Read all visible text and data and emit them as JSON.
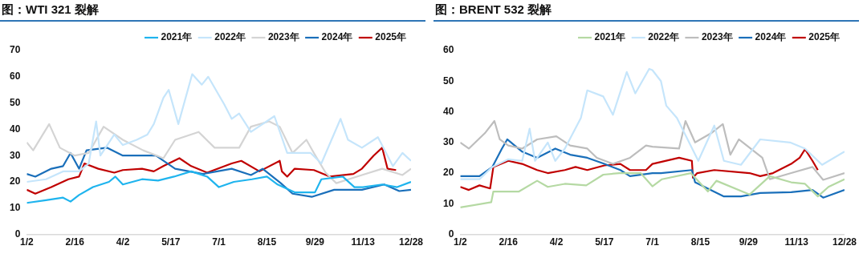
{
  "chart_data": [
    {
      "type": "line",
      "title": "图：WTI 321 裂解",
      "legend": "top right",
      "marker": "none",
      "line_style": "solid",
      "grid": false,
      "xlim": [
        "--01-02",
        "--12-28"
      ],
      "xticks": [
        {
          "value": "--01-02",
          "label": "1/2"
        },
        {
          "value": "--02-16",
          "label": "2/16"
        },
        {
          "value": "--04-02",
          "label": "4/2"
        },
        {
          "value": "--05-17",
          "label": "5/17"
        },
        {
          "value": "--07-01",
          "label": "7/1"
        },
        {
          "value": "--08-15",
          "label": "8/15"
        },
        {
          "value": "--09-29",
          "label": "9/29"
        },
        {
          "value": "--11-13",
          "label": "11/13"
        },
        {
          "value": "--12-28",
          "label": "12/28"
        }
      ],
      "ylim": [
        0,
        70
      ],
      "yticks": [
        0,
        10,
        20,
        30,
        40,
        50,
        60,
        70
      ],
      "series": [
        {
          "name": "2021年",
          "color": "#1fb4ee",
          "x": [
            "--01-02",
            "--01-20",
            "--02-05",
            "--02-12",
            "--02-20",
            "--03-05",
            "--03-20",
            "--03-26",
            "--04-02",
            "--04-20",
            "--05-05",
            "--05-20",
            "--06-05",
            "--06-20",
            "--07-01",
            "--07-15",
            "--08-01",
            "--08-15",
            "--08-25",
            "--09-10",
            "--09-29",
            "--10-05",
            "--10-25",
            "--11-05",
            "--11-13",
            "--12-01",
            "--12-15",
            "--12-28"
          ],
          "values": [
            12,
            13,
            14,
            12.5,
            15,
            18,
            20,
            22,
            19,
            21,
            20.5,
            22,
            24,
            22,
            18,
            20,
            21,
            22,
            19,
            16,
            16,
            21,
            22,
            18,
            18,
            19,
            18,
            20
          ]
        },
        {
          "name": "2022年",
          "color": "#c5e5fb",
          "x": [
            "--01-02",
            "--01-20",
            "--02-05",
            "--02-20",
            "--03-01",
            "--03-08",
            "--03-12",
            "--03-25",
            "--04-02",
            "--04-15",
            "--04-25",
            "--05-01",
            "--05-10",
            "--05-15",
            "--05-24",
            "--06-06",
            "--06-15",
            "--06-21",
            "--07-06",
            "--07-13",
            "--07-20",
            "--07-31",
            "--08-22",
            "--09-03",
            "--09-25",
            "--10-05",
            "--10-23",
            "--10-30",
            "--11-12",
            "--11-27",
            "--12-11",
            "--12-20",
            "--12-28"
          ],
          "values": [
            20,
            21,
            24,
            24,
            27,
            43,
            30,
            38,
            34,
            36,
            38,
            42,
            52,
            55,
            42,
            61,
            57,
            60,
            49.5,
            44,
            46,
            39,
            45,
            31,
            31,
            27,
            44,
            36,
            33,
            37,
            26,
            31,
            28
          ]
        },
        {
          "name": "2023年",
          "color": "#d4d4d4",
          "x": [
            "--01-02",
            "--01-08",
            "--01-23",
            "--02-02",
            "--02-16",
            "--03-01",
            "--03-15",
            "--04-02",
            "--04-21",
            "--05-10",
            "--05-21",
            "--06-12",
            "--06-27",
            "--07-20",
            "--07-31",
            "--08-17",
            "--08-27",
            "--09-08",
            "--09-21",
            "--09-28",
            "--10-09",
            "--10-19",
            "--11-12",
            "--12-01",
            "--12-20",
            "--12-28"
          ],
          "values": [
            35,
            32,
            42,
            33,
            30,
            31,
            41,
            36,
            32,
            29,
            36,
            39,
            33,
            33,
            41,
            43,
            41,
            31,
            36,
            31,
            23.5,
            19.5,
            22.6,
            25,
            22.6,
            25
          ]
        },
        {
          "name": "2024年",
          "color": "#1a6fba",
          "x": [
            "--01-02",
            "--01-10",
            "--01-25",
            "--02-05",
            "--02-12",
            "--02-20",
            "--02-27",
            "--03-18",
            "--04-02",
            "--04-20",
            "--05-03",
            "--05-21",
            "--06-16",
            "--07-13",
            "--07-31",
            "--08-11",
            "--08-28",
            "--09-08",
            "--09-26",
            "--10-17",
            "--11-12",
            "--12-03",
            "--12-17",
            "--12-28"
          ],
          "values": [
            23,
            22,
            25,
            26,
            31,
            25,
            32,
            33,
            30,
            30,
            30,
            25,
            23,
            25,
            22.6,
            25,
            19.5,
            15.5,
            14.3,
            17,
            17,
            19,
            16.5,
            17
          ]
        },
        {
          "name": "2025年",
          "color": "#c00000",
          "x": [
            "--01-02",
            "--01-10",
            "--01-25",
            "--02-10",
            "--02-20",
            "--02-25",
            "--03-10",
            "--03-25",
            "--04-02",
            "--04-20",
            "--05-01",
            "--05-10",
            "--05-25",
            "--06-05",
            "--06-20",
            "--07-13",
            "--07-22",
            "--08-08",
            "--08-27",
            "--08-29",
            "--09-03",
            "--09-10",
            "--09-28",
            "--10-13",
            "--11-04",
            "--11-12",
            "--11-23",
            "--12-01",
            "--12-06",
            "--12-14"
          ],
          "values": [
            17,
            15.5,
            18,
            21,
            22,
            27,
            25,
            23.5,
            24.5,
            25,
            24,
            26,
            29,
            26,
            23.5,
            27,
            28,
            24,
            28,
            24,
            22,
            25,
            24.5,
            22,
            23,
            25,
            30,
            33,
            25,
            24.5
          ]
        }
      ]
    },
    {
      "type": "line",
      "title": "图：BRENT 532 裂解",
      "legend": "top right",
      "marker": "none",
      "line_style": "solid",
      "grid": false,
      "xlim": [
        "--01-02",
        "--12-28"
      ],
      "xticks": [
        {
          "value": "--01-02",
          "label": "1/2"
        },
        {
          "value": "--02-16",
          "label": "2/16"
        },
        {
          "value": "--04-02",
          "label": "4/2"
        },
        {
          "value": "--05-17",
          "label": "5/17"
        },
        {
          "value": "--07-01",
          "label": "7/1"
        },
        {
          "value": "--08-15",
          "label": "8/15"
        },
        {
          "value": "--09-29",
          "label": "9/29"
        },
        {
          "value": "--11-13",
          "label": "11/13"
        },
        {
          "value": "--12-28",
          "label": "12/28"
        }
      ],
      "ylim": [
        0,
        60
      ],
      "yticks": [
        0,
        10,
        20,
        30,
        40,
        50,
        60
      ],
      "series": [
        {
          "name": "2021年",
          "color": "#b5d9a3",
          "x": [
            "--01-02",
            "--01-31",
            "--02-02",
            "--02-26",
            "--03-15",
            "--03-25",
            "--04-10",
            "--04-30",
            "--05-16",
            "--05-31",
            "--06-20",
            "--07-01",
            "--07-10",
            "--08-06",
            "--08-22",
            "--08-30",
            "--09-30",
            "--10-19",
            "--11-08",
            "--11-21",
            "--12-03",
            "--12-13",
            "--12-28"
          ],
          "values": [
            8.8,
            10.5,
            14,
            14,
            17.5,
            15.5,
            16.5,
            16,
            19.5,
            20,
            20,
            15.7,
            18,
            20,
            14,
            17.5,
            13,
            19,
            17,
            16.5,
            12.4,
            15.5,
            18
          ]
        },
        {
          "name": "2022年",
          "color": "#c5e5fb",
          "x": [
            "--01-02",
            "--01-20",
            "--02-01",
            "--02-16",
            "--03-01",
            "--03-08",
            "--03-13",
            "--03-25",
            "--04-01",
            "--04-10",
            "--04-25",
            "--05-01",
            "--05-16",
            "--05-25",
            "--06-07",
            "--06-15",
            "--06-28",
            "--07-01",
            "--07-09",
            "--07-14",
            "--07-24",
            "--08-13",
            "--08-28",
            "--09-06",
            "--09-22",
            "--10-10",
            "--11-07",
            "--11-21",
            "--12-07",
            "--12-28"
          ],
          "values": [
            18,
            18,
            22,
            24.5,
            24,
            34.5,
            24,
            30,
            24,
            28,
            38,
            47,
            45,
            39,
            53,
            46,
            54,
            53.6,
            50,
            42,
            38,
            24,
            35.5,
            24,
            22.7,
            31,
            30,
            28,
            22.7,
            27
          ]
        },
        {
          "name": "2023年",
          "color": "#bdbdbd",
          "x": [
            "--01-02",
            "--01-10",
            "--01-25",
            "--02-03",
            "--02-08",
            "--02-16",
            "--03-01",
            "--03-15",
            "--04-02",
            "--04-15",
            "--05-01",
            "--05-10",
            "--05-25",
            "--06-10",
            "--06-25",
            "--07-01",
            "--07-26",
            "--08-01",
            "--08-10",
            "--08-25",
            "--09-05",
            "--09-12",
            "--09-20",
            "--10-12",
            "--10-19",
            "--11-08",
            "--11-28",
            "--12-08",
            "--12-28"
          ],
          "values": [
            30,
            28,
            33,
            37,
            31,
            29,
            28,
            31,
            32,
            29,
            28,
            25,
            23,
            25,
            29,
            28.6,
            28,
            37,
            30,
            33,
            36,
            26,
            31,
            25,
            18,
            20,
            22,
            17.8,
            20
          ]
        },
        {
          "name": "2024年",
          "color": "#1a6fba",
          "x": [
            "--01-02",
            "--01-20",
            "--02-01",
            "--02-10",
            "--02-15",
            "--03-01",
            "--03-15",
            "--04-01",
            "--04-15",
            "--05-01",
            "--05-17",
            "--06-01",
            "--06-10",
            "--07-01",
            "--07-09",
            "--08-07",
            "--08-10",
            "--09-06",
            "--09-22",
            "--10-10",
            "--11-08",
            "--11-28",
            "--12-08",
            "--12-28"
          ],
          "values": [
            19,
            19,
            22,
            28,
            31,
            27,
            25,
            28,
            26,
            25,
            23,
            21,
            19,
            20,
            20,
            21,
            17,
            12.4,
            12.4,
            13.5,
            13.8,
            14.5,
            12,
            14.5
          ]
        },
        {
          "name": "2025年",
          "color": "#c00000",
          "x": [
            "--01-02",
            "--01-10",
            "--01-20",
            "--01-30",
            "--02-02",
            "--02-16",
            "--03-01",
            "--03-15",
            "--03-25",
            "--04-10",
            "--04-20",
            "--05-01",
            "--05-17",
            "--06-01",
            "--06-10",
            "--06-25",
            "--07-01",
            "--07-26",
            "--08-07",
            "--08-08",
            "--08-12",
            "--08-28",
            "--09-30",
            "--10-10",
            "--10-22",
            "--11-08",
            "--11-16",
            "--11-21",
            "--11-28",
            "--12-03"
          ],
          "values": [
            15.5,
            14.5,
            16,
            15,
            22,
            24,
            23,
            21,
            20,
            21,
            22,
            21,
            22.5,
            23,
            21,
            21,
            23,
            25,
            24,
            18.5,
            20,
            21,
            20,
            19,
            20,
            23,
            25,
            27.8,
            24,
            21
          ]
        }
      ]
    }
  ]
}
